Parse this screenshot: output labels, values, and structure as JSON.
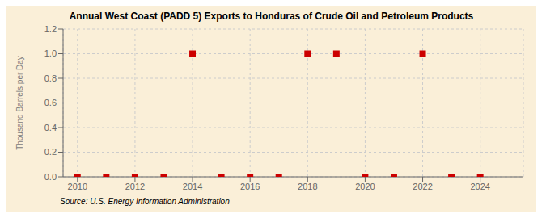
{
  "chart_data": {
    "type": "scatter",
    "title": "Annual West Coast (PADD 5) Exports to Honduras of Crude Oil and Petroleum Products",
    "ylabel": "Thousand Barrels per Day",
    "source": "Source: U.S. Energy Information Administration",
    "x": [
      2010,
      2011,
      2012,
      2013,
      2014,
      2015,
      2016,
      2017,
      2018,
      2019,
      2020,
      2021,
      2022,
      2023,
      2024
    ],
    "values": [
      0.0,
      0.0,
      0.0,
      0.0,
      1.0,
      0.0,
      0.0,
      0.0,
      1.0,
      1.0,
      0.0,
      0.0,
      1.0,
      0.0,
      0.0
    ],
    "color": "#cc0000",
    "marker": "square",
    "xlim": [
      2009.5,
      2025.5
    ],
    "ylim": [
      0.0,
      1.2
    ],
    "xticks": [
      2010,
      2012,
      2014,
      2016,
      2018,
      2020,
      2022,
      2024
    ],
    "yticks": [
      {
        "value": 0.0,
        "label": "0.0"
      },
      0.2,
      0.4,
      0.6,
      0.8,
      {
        "value": 1.0,
        "label": "1.0"
      },
      1.2
    ],
    "grid": true
  }
}
